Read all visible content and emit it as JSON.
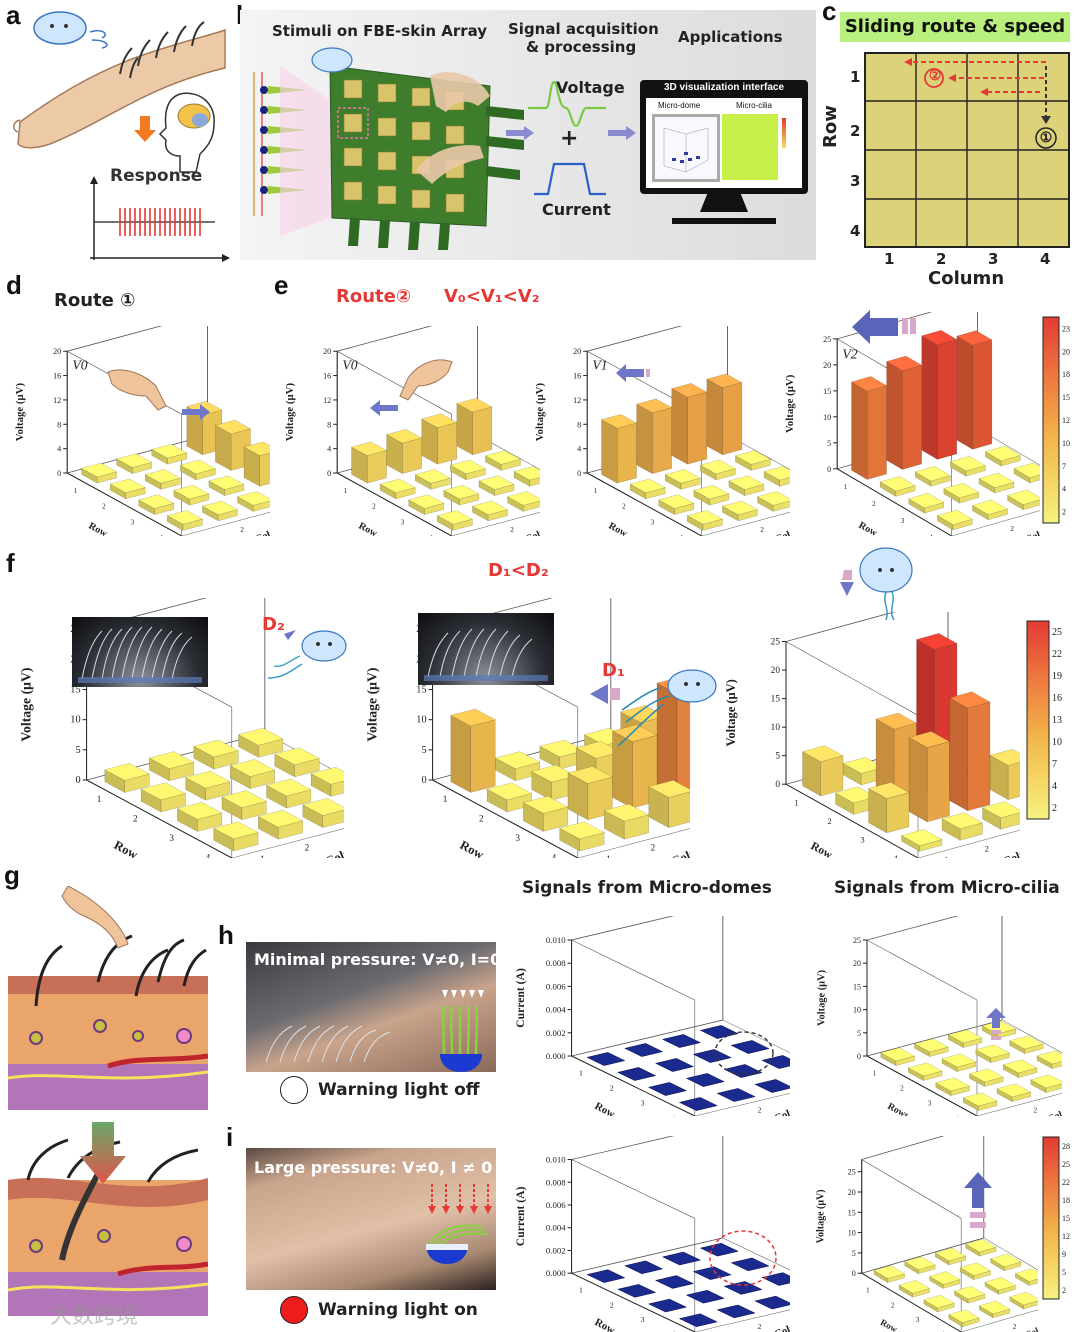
{
  "panel_labels": [
    "a",
    "b",
    "c",
    "d",
    "e",
    "f",
    "g",
    "h",
    "i"
  ],
  "panel_a": {
    "response": "Response"
  },
  "panel_b": {
    "array_title": "Stimuli on FBE-skin Array",
    "signal_title_1": "Signal acquisition",
    "signal_title_2": "& processing",
    "applications": "Applications",
    "voltage": "Voltage",
    "plus": "+",
    "current": "Current",
    "monitor_title": "3D visualization interface",
    "monitor_left": "Micro-dome",
    "monitor_right": "Micro-cilia"
  },
  "panel_c": {
    "title": "Sliding route & speed",
    "row_label": "Row",
    "column_label": "Column",
    "row_ticks": [
      "1",
      "2",
      "3",
      "4"
    ],
    "col_ticks": [
      "1",
      "2",
      "3",
      "4"
    ],
    "route1": "①",
    "route2": "②",
    "bg": "#dcd27a",
    "title_bg": "#b9ef7d"
  },
  "panel_d": {
    "title": "Route ①"
  },
  "panel_e": {
    "title_route": "Route②",
    "title_speed": "V₀<V₁<V₂"
  },
  "panel_f": {
    "title": "D₁<D₂",
    "d2": "D₂",
    "d1": "D₁"
  },
  "panel_h": {
    "caption": "Minimal pressure: V≠0, I=0",
    "warning": "Warning light off"
  },
  "panel_i": {
    "caption": "Large pressure: V≠0, I ≠ 0",
    "warning": "Warning light on"
  },
  "signals": {
    "domes": "Signals from Micro-domes",
    "cilia": "Signals from Micro-cilia"
  },
  "watermark": "大数跨境",
  "colors": {
    "accent_red": "#e53935",
    "bar_yellow": "#f2ec6a",
    "bar_orange": "#f0a040",
    "bar_red": "#e5483a",
    "dome_blue": "#1a237e"
  },
  "chart_data": [
    {
      "id": "d-v0",
      "type": "bar3d",
      "speed_label": "V0",
      "zlabel": "Voltage (μV)",
      "xlabel": "Row",
      "ylabel": "Column",
      "zticks": [
        "0",
        "4",
        "8",
        "12",
        "16",
        "20"
      ],
      "zlim": [
        0,
        20
      ],
      "values": [
        [
          1,
          1,
          1,
          6.5
        ],
        [
          1,
          1,
          1,
          6
        ],
        [
          1,
          1,
          1,
          5
        ],
        [
          1,
          1,
          1,
          4.5
        ]
      ]
    },
    {
      "id": "e-v0",
      "type": "bar3d",
      "speed_label": "V0",
      "zlabel": "Voltage (μV)",
      "xlabel": "Row",
      "ylabel": "Column",
      "zticks": [
        "0",
        "4",
        "8",
        "12",
        "16",
        "20"
      ],
      "zlim": [
        0,
        20
      ],
      "values": [
        [
          4.5,
          5,
          6,
          7
        ],
        [
          1,
          1,
          1,
          1
        ],
        [
          1,
          1,
          1,
          1
        ],
        [
          1,
          1,
          1,
          1
        ]
      ]
    },
    {
      "id": "e-v1",
      "type": "bar3d",
      "speed_label": "V1",
      "zlabel": "Voltage (μV)",
      "xlabel": "Row",
      "ylabel": "Column",
      "zticks": [
        "0",
        "4",
        "8",
        "12",
        "16",
        "20"
      ],
      "zlim": [
        0,
        20
      ],
      "values": [
        [
          9,
          10,
          11,
          11
        ],
        [
          1,
          1,
          1,
          1
        ],
        [
          1,
          1,
          1,
          1
        ],
        [
          1,
          1,
          1,
          1
        ]
      ]
    },
    {
      "id": "e-v2",
      "type": "bar3d",
      "speed_label": "V2",
      "zlabel": "Voltage (μV)",
      "xlabel": "Row",
      "ylabel": "Column",
      "zticks": [
        "0",
        "5",
        "10",
        "15",
        "20",
        "25"
      ],
      "zlim": [
        0,
        25
      ],
      "values": [
        [
          17,
          19,
          22,
          20
        ],
        [
          1,
          1,
          1,
          1
        ],
        [
          1,
          1,
          1,
          1
        ],
        [
          1,
          1,
          1,
          1
        ]
      ],
      "colorbar": [
        "23",
        "20",
        "18",
        "15",
        "12",
        "10",
        "7",
        "4",
        "2"
      ]
    },
    {
      "id": "f-d2",
      "type": "bar3d",
      "zlabel": "Voltage (μV)",
      "xlabel": "Row",
      "ylabel": "Column",
      "zticks": [
        "0",
        "5",
        "10",
        "15",
        "20",
        "25"
      ],
      "zlim": [
        0,
        25
      ],
      "values": [
        [
          2,
          2,
          2,
          2
        ],
        [
          2,
          2,
          2,
          2
        ],
        [
          2,
          2,
          2,
          2
        ],
        [
          2,
          2,
          2,
          11
        ]
      ]
    },
    {
      "id": "f-d1",
      "type": "bar3d",
      "zlabel": "Voltage (μV)",
      "xlabel": "Row",
      "ylabel": "Column",
      "zticks": [
        "0",
        "5",
        "10",
        "15",
        "20",
        "25"
      ],
      "zlim": [
        0,
        25
      ],
      "values": [
        [
          11,
          2,
          2,
          2
        ],
        [
          2,
          3,
          5,
          9
        ],
        [
          3,
          6,
          11,
          17
        ],
        [
          2,
          3,
          5,
          21
        ]
      ]
    },
    {
      "id": "f-d0",
      "type": "bar3d",
      "zlabel": "Voltage (μV)",
      "xlabel": "Row",
      "ylabel": "Column",
      "zticks": [
        "0",
        "5",
        "10",
        "15",
        "20",
        "25"
      ],
      "zlim": [
        0,
        25
      ],
      "values": [
        [
          6,
          2,
          2,
          1
        ],
        [
          2,
          13,
          25,
          2
        ],
        [
          6,
          13,
          18,
          6
        ],
        [
          1,
          2,
          2,
          2
        ]
      ],
      "colorbar": [
        "25",
        "22",
        "19",
        "16",
        "13",
        "10",
        "7",
        "4",
        "2"
      ]
    },
    {
      "id": "h-domes",
      "type": "bar3d",
      "zlabel": "Current (A)",
      "xlabel": "Row",
      "ylabel": "Column",
      "zticks": [
        "0.000",
        "0.002",
        "0.004",
        "0.006",
        "0.008",
        "0.010"
      ],
      "zlim": [
        0,
        0.01
      ],
      "values": [
        [
          0,
          0,
          0,
          0
        ],
        [
          0,
          0,
          0,
          0
        ],
        [
          0,
          0,
          0,
          0
        ],
        [
          0,
          0,
          0,
          0
        ]
      ]
    },
    {
      "id": "h-cilia",
      "type": "bar3d",
      "zlabel": "Voltage (μV)",
      "xlabel": "Rows",
      "ylabel": "Column",
      "zticks": [
        "0",
        "5",
        "10",
        "15",
        "20",
        "25"
      ],
      "zlim": [
        0,
        25
      ],
      "values": [
        [
          1,
          1,
          1,
          1
        ],
        [
          1,
          1,
          1,
          1
        ],
        [
          1,
          1,
          1,
          1
        ],
        [
          1,
          1,
          1,
          9
        ]
      ]
    },
    {
      "id": "i-domes",
      "type": "bar3d",
      "zlabel": "Current (A)",
      "xlabel": "Row",
      "ylabel": "Column",
      "zticks": [
        "0.000",
        "0.002",
        "0.004",
        "0.006",
        "0.008",
        "0.010"
      ],
      "zlim": [
        0,
        0.01
      ],
      "values": [
        [
          0,
          0,
          0,
          0
        ],
        [
          0,
          0,
          0,
          0
        ],
        [
          0,
          0,
          0,
          0
        ],
        [
          0,
          0,
          0,
          0.0012
        ]
      ]
    },
    {
      "id": "i-cilia",
      "type": "bar3d",
      "zlabel": "Voltage (μV)",
      "xlabel": "Row",
      "ylabel": "Column",
      "zticks": [
        "0",
        "5",
        "10",
        "15",
        "20",
        "25"
      ],
      "zlim": [
        0,
        28
      ],
      "values": [
        [
          1,
          1,
          1,
          1
        ],
        [
          1,
          1,
          1,
          1
        ],
        [
          1,
          1,
          1,
          1
        ],
        [
          1,
          1,
          1,
          28
        ]
      ],
      "colorbar": [
        "28",
        "25",
        "22",
        "18",
        "15",
        "12",
        "9",
        "5",
        "2"
      ]
    }
  ]
}
